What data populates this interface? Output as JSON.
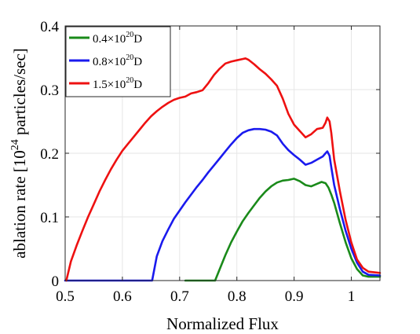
{
  "chart_data": {
    "type": "line",
    "title": "",
    "xlabel": "Normalized Flux",
    "ylabel_prefix": "ablation rate [10",
    "ylabel_exponent": "24",
    "ylabel_suffix": " particles/sec]",
    "xlim": [
      0.5,
      1.05
    ],
    "ylim": [
      0,
      0.4
    ],
    "xticks": [
      0.5,
      0.6,
      0.7,
      0.8,
      0.9,
      1
    ],
    "xtick_labels": [
      "0.5",
      "0.6",
      "0.7",
      "0.8",
      "0.9",
      "1"
    ],
    "yticks": [
      0,
      0.1,
      0.2,
      0.3,
      0.4
    ],
    "ytick_labels": [
      "0",
      "0.1",
      "0.2",
      "0.3",
      "0.4"
    ],
    "grid": true,
    "legend_position": "top-left",
    "series": [
      {
        "name_prefix": "0.4×10",
        "name_exponent": "20",
        "name_suffix": "D",
        "color": "#1a8a1a",
        "points": [
          [
            0.71,
            0.0
          ],
          [
            0.762,
            0.0
          ],
          [
            0.77,
            0.018
          ],
          [
            0.78,
            0.04
          ],
          [
            0.79,
            0.06
          ],
          [
            0.8,
            0.077
          ],
          [
            0.81,
            0.093
          ],
          [
            0.82,
            0.106
          ],
          [
            0.83,
            0.118
          ],
          [
            0.84,
            0.13
          ],
          [
            0.85,
            0.14
          ],
          [
            0.86,
            0.148
          ],
          [
            0.87,
            0.154
          ],
          [
            0.88,
            0.157
          ],
          [
            0.89,
            0.158
          ],
          [
            0.9,
            0.16
          ],
          [
            0.91,
            0.156
          ],
          [
            0.92,
            0.15
          ],
          [
            0.93,
            0.148
          ],
          [
            0.94,
            0.152
          ],
          [
            0.948,
            0.155
          ],
          [
            0.955,
            0.153
          ],
          [
            0.96,
            0.146
          ],
          [
            0.965,
            0.135
          ],
          [
            0.97,
            0.122
          ],
          [
            0.98,
            0.09
          ],
          [
            0.99,
            0.06
          ],
          [
            1.0,
            0.035
          ],
          [
            1.01,
            0.018
          ],
          [
            1.02,
            0.008
          ],
          [
            1.03,
            0.006
          ],
          [
            1.05,
            0.006
          ]
        ]
      },
      {
        "name_prefix": "0.8×10",
        "name_exponent": "20",
        "name_suffix": "D",
        "color": "#1a1aee",
        "points": [
          [
            0.5,
            0.0
          ],
          [
            0.652,
            0.0
          ],
          [
            0.66,
            0.038
          ],
          [
            0.67,
            0.062
          ],
          [
            0.68,
            0.08
          ],
          [
            0.69,
            0.097
          ],
          [
            0.7,
            0.11
          ],
          [
            0.71,
            0.123
          ],
          [
            0.72,
            0.135
          ],
          [
            0.73,
            0.147
          ],
          [
            0.74,
            0.158
          ],
          [
            0.75,
            0.17
          ],
          [
            0.76,
            0.181
          ],
          [
            0.77,
            0.192
          ],
          [
            0.78,
            0.203
          ],
          [
            0.79,
            0.214
          ],
          [
            0.8,
            0.224
          ],
          [
            0.81,
            0.232
          ],
          [
            0.82,
            0.236
          ],
          [
            0.83,
            0.238
          ],
          [
            0.84,
            0.238
          ],
          [
            0.85,
            0.237
          ],
          [
            0.86,
            0.234
          ],
          [
            0.87,
            0.228
          ],
          [
            0.88,
            0.215
          ],
          [
            0.89,
            0.205
          ],
          [
            0.9,
            0.197
          ],
          [
            0.91,
            0.19
          ],
          [
            0.92,
            0.182
          ],
          [
            0.93,
            0.185
          ],
          [
            0.94,
            0.19
          ],
          [
            0.95,
            0.195
          ],
          [
            0.955,
            0.2
          ],
          [
            0.958,
            0.203
          ],
          [
            0.962,
            0.196
          ],
          [
            0.965,
            0.178
          ],
          [
            0.97,
            0.15
          ],
          [
            0.98,
            0.112
          ],
          [
            0.99,
            0.078
          ],
          [
            1.0,
            0.05
          ],
          [
            1.01,
            0.028
          ],
          [
            1.02,
            0.014
          ],
          [
            1.03,
            0.009
          ],
          [
            1.05,
            0.008
          ]
        ]
      },
      {
        "name_prefix": "1.5×10",
        "name_exponent": "20",
        "name_suffix": "D",
        "color": "#ee1111",
        "points": [
          [
            0.502,
            0.0
          ],
          [
            0.51,
            0.03
          ],
          [
            0.52,
            0.055
          ],
          [
            0.53,
            0.078
          ],
          [
            0.54,
            0.1
          ],
          [
            0.55,
            0.12
          ],
          [
            0.56,
            0.14
          ],
          [
            0.57,
            0.158
          ],
          [
            0.58,
            0.175
          ],
          [
            0.59,
            0.19
          ],
          [
            0.6,
            0.204
          ],
          [
            0.61,
            0.215
          ],
          [
            0.62,
            0.226
          ],
          [
            0.63,
            0.237
          ],
          [
            0.64,
            0.248
          ],
          [
            0.65,
            0.258
          ],
          [
            0.66,
            0.266
          ],
          [
            0.67,
            0.273
          ],
          [
            0.68,
            0.279
          ],
          [
            0.69,
            0.284
          ],
          [
            0.7,
            0.287
          ],
          [
            0.71,
            0.289
          ],
          [
            0.72,
            0.294
          ],
          [
            0.73,
            0.296
          ],
          [
            0.74,
            0.299
          ],
          [
            0.75,
            0.31
          ],
          [
            0.76,
            0.323
          ],
          [
            0.77,
            0.333
          ],
          [
            0.78,
            0.341
          ],
          [
            0.79,
            0.344
          ],
          [
            0.8,
            0.346
          ],
          [
            0.81,
            0.348
          ],
          [
            0.815,
            0.349
          ],
          [
            0.82,
            0.347
          ],
          [
            0.83,
            0.34
          ],
          [
            0.84,
            0.332
          ],
          [
            0.85,
            0.325
          ],
          [
            0.86,
            0.316
          ],
          [
            0.87,
            0.306
          ],
          [
            0.88,
            0.286
          ],
          [
            0.89,
            0.262
          ],
          [
            0.9,
            0.245
          ],
          [
            0.91,
            0.235
          ],
          [
            0.92,
            0.225
          ],
          [
            0.93,
            0.23
          ],
          [
            0.94,
            0.238
          ],
          [
            0.95,
            0.24
          ],
          [
            0.955,
            0.248
          ],
          [
            0.958,
            0.256
          ],
          [
            0.962,
            0.25
          ],
          [
            0.965,
            0.232
          ],
          [
            0.97,
            0.19
          ],
          [
            0.98,
            0.14
          ],
          [
            0.99,
            0.095
          ],
          [
            1.0,
            0.06
          ],
          [
            1.01,
            0.033
          ],
          [
            1.02,
            0.02
          ],
          [
            1.03,
            0.014
          ],
          [
            1.05,
            0.012
          ]
        ]
      }
    ]
  }
}
